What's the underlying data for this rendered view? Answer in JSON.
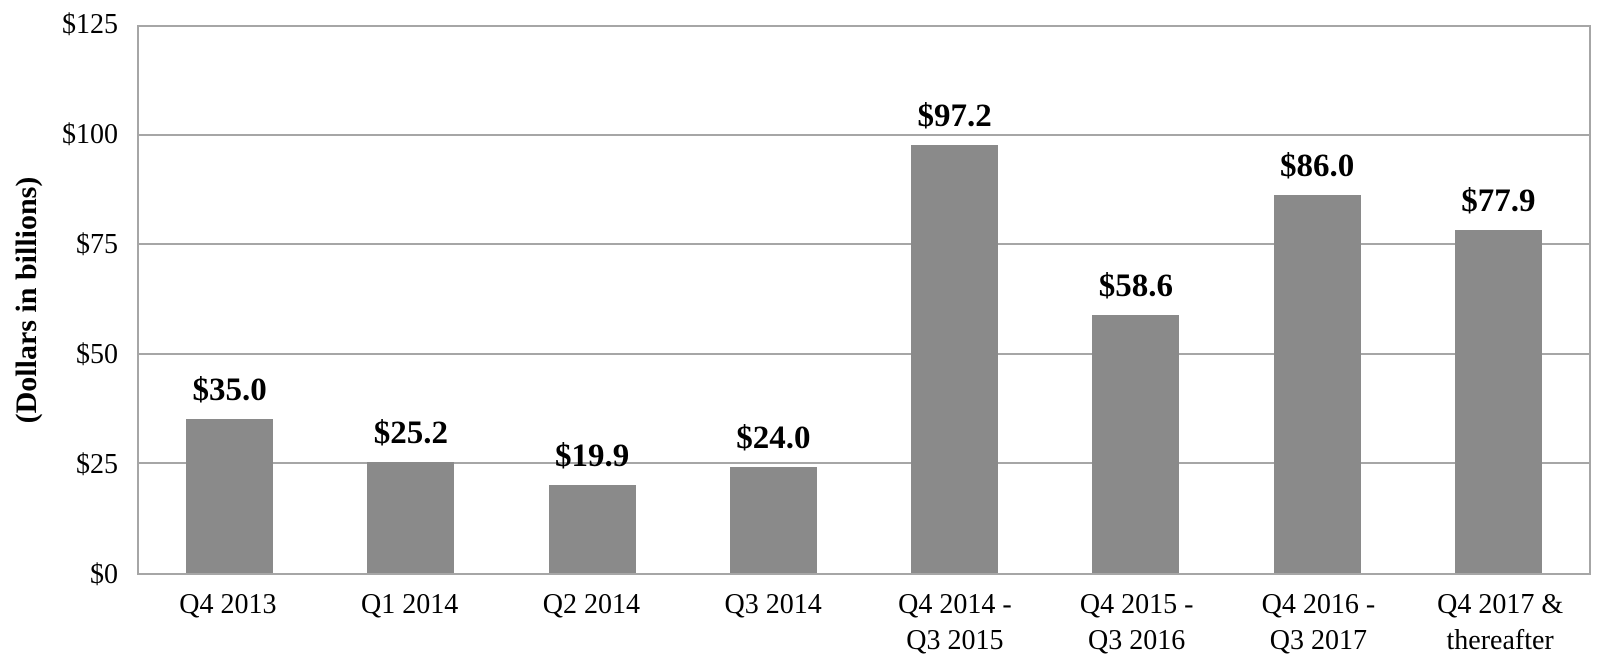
{
  "chart_data": {
    "type": "bar",
    "categories": [
      "Q4 2013",
      "Q1 2014",
      "Q2 2014",
      "Q3 2014",
      "Q4 2014 -\nQ3 2015",
      "Q4 2015 -\nQ3 2016",
      "Q4 2016 -\nQ3 2017",
      "Q4 2017 &\nthereafter"
    ],
    "values": [
      35.0,
      25.2,
      19.9,
      24.0,
      97.2,
      58.6,
      86.0,
      77.9
    ],
    "value_labels": [
      "$35.0",
      "$25.2",
      "$19.9",
      "$24.0",
      "$97.2",
      "$58.6",
      "$86.0",
      "$77.9"
    ],
    "xlabel": "",
    "ylabel": "(Dollars in billions)",
    "ylim": [
      0,
      125
    ],
    "yticks": [
      {
        "value": 0,
        "label": "$0"
      },
      {
        "value": 25,
        "label": "$25"
      },
      {
        "value": 50,
        "label": "$50"
      },
      {
        "value": 75,
        "label": "$75"
      },
      {
        "value": 100,
        "label": "$100"
      },
      {
        "value": 125,
        "label": "$125"
      }
    ],
    "grid": true,
    "legend": false,
    "bar_color": "#8a8a8a",
    "gridline_color": "#a6a6a6",
    "axis_border_color": "#a6a6a6",
    "text_color": "#000000"
  }
}
